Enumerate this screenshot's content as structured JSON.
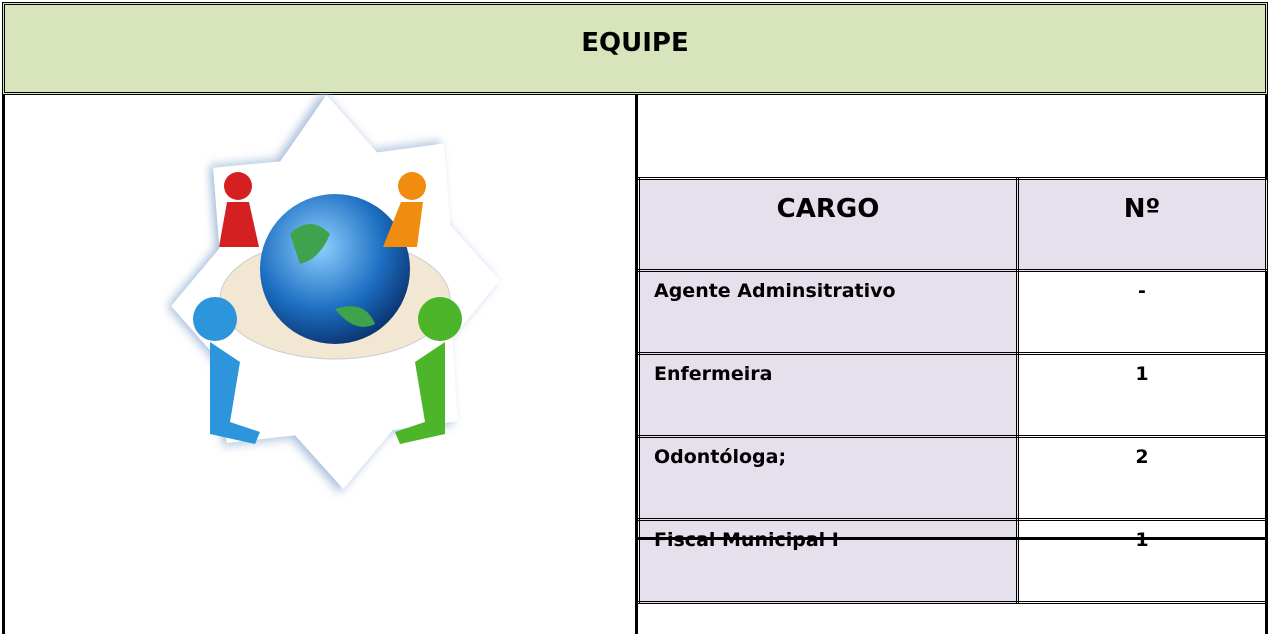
{
  "header": {
    "title": "EQUIPE"
  },
  "table": {
    "headers": [
      "CARGO",
      "Nº"
    ],
    "rows": [
      [
        "Agente Adminsitrativo",
        "-"
      ],
      [
        "Enfermeira",
        1
      ],
      [
        "Odontóloga;",
        2
      ],
      [
        "Fiscal Municipal I",
        1
      ]
    ]
  }
}
